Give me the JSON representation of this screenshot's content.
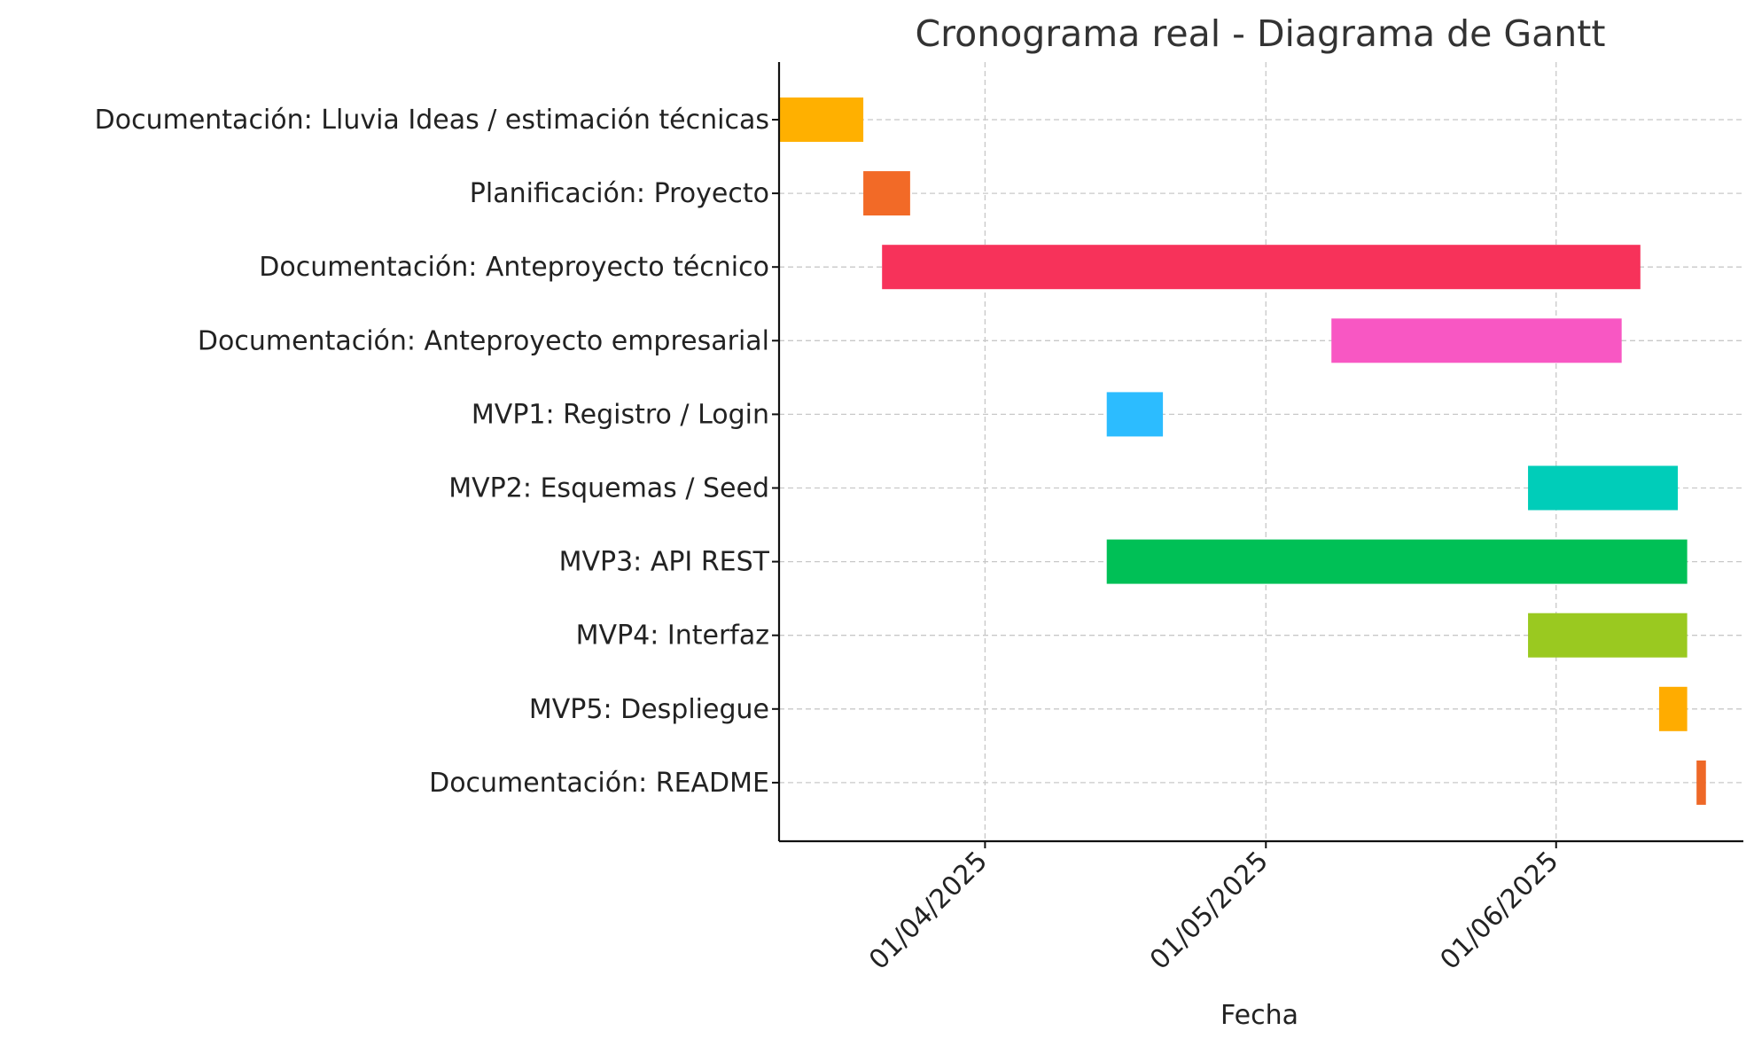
{
  "chart_data": {
    "type": "gantt",
    "title": "Cronograma real - Diagrama de Gantt",
    "xlabel": "Fecha",
    "ylabel": "",
    "xlim": [
      "2025-03-10",
      "2025-06-21"
    ],
    "x_ticks": [
      "01/04/2025",
      "01/05/2025",
      "01/06/2025"
    ],
    "x_tick_dates": [
      "2025-04-01",
      "2025-05-01",
      "2025-06-01"
    ],
    "grid": true,
    "tasks": [
      {
        "label": "Documentación: Lluvia Ideas / estimación técnicas",
        "start": "2025-03-10",
        "end": "2025-03-19",
        "color": "#FFB000"
      },
      {
        "label": "Planificación: Proyecto",
        "start": "2025-03-19",
        "end": "2025-03-24",
        "color": "#F26A27"
      },
      {
        "label": "Documentación: Anteproyecto técnico",
        "start": "2025-03-21",
        "end": "2025-06-10",
        "color": "#F7325A"
      },
      {
        "label": "Documentación: Anteproyecto empresarial",
        "start": "2025-05-08",
        "end": "2025-06-08",
        "color": "#F857C3"
      },
      {
        "label": "MVP1: Registro / Login",
        "start": "2025-04-14",
        "end": "2025-04-20",
        "color": "#2CBCFF"
      },
      {
        "label": "MVP2: Esquemas / Seed",
        "start": "2025-05-29",
        "end": "2025-06-14",
        "color": "#00CDB9"
      },
      {
        "label": "MVP3: API REST",
        "start": "2025-04-14",
        "end": "2025-06-15",
        "color": "#00C056"
      },
      {
        "label": "MVP4: Interfaz",
        "start": "2025-05-29",
        "end": "2025-06-15",
        "color": "#9AC920"
      },
      {
        "label": "MVP5: Despliegue",
        "start": "2025-06-12",
        "end": "2025-06-15",
        "color": "#FFAC00"
      },
      {
        "label": "Documentación: README",
        "start": "2025-06-16",
        "end": "2025-06-17",
        "color": "#EE6827"
      }
    ]
  }
}
